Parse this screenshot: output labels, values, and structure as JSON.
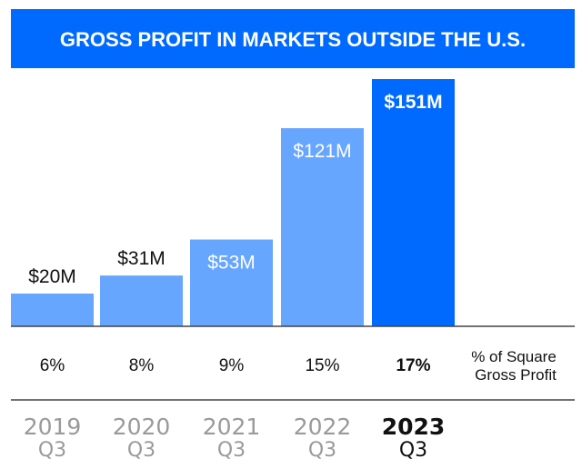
{
  "chart_data": {
    "type": "bar",
    "title": "GROSS PROFIT IN MARKETS OUTSIDE THE U.S.",
    "categories": [
      {
        "year": "2019",
        "quarter": "Q3"
      },
      {
        "year": "2020",
        "quarter": "Q3"
      },
      {
        "year": "2021",
        "quarter": "Q3"
      },
      {
        "year": "2022",
        "quarter": "Q3"
      },
      {
        "year": "2023",
        "quarter": "Q3"
      }
    ],
    "values": [
      20,
      31,
      53,
      121,
      151
    ],
    "value_labels": [
      "$20M",
      "$31M",
      "$53M",
      "$121M",
      "$151M"
    ],
    "unit": "$M",
    "percent_of_square_gross_profit": [
      "6%",
      "8%",
      "9%",
      "15%",
      "17%"
    ],
    "percent_row_label": [
      "% of Square",
      "Gross Profit"
    ],
    "highlight_index": 4,
    "ylim": [
      0,
      151
    ],
    "xlabel": "",
    "ylabel": "",
    "grid": false,
    "legend": "none"
  },
  "colors": {
    "title_bg": "#006AFF",
    "bar": "#66A6FF",
    "bar_highlight": "#006AFF",
    "year_muted": "#9A9A9A",
    "text_dark": "#111111"
  }
}
